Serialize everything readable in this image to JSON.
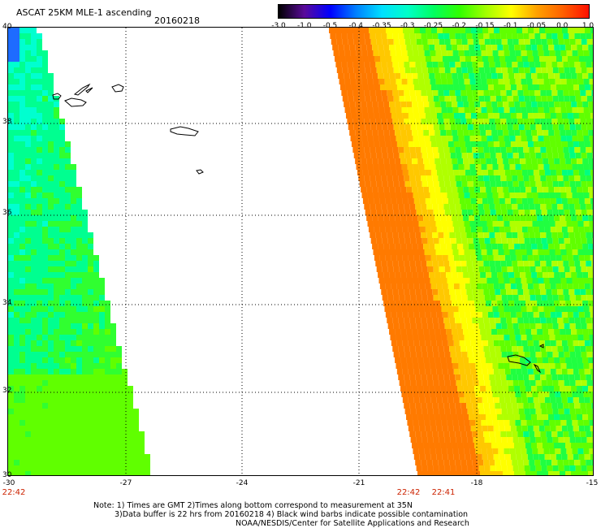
{
  "header": {
    "title": "ASCAT 25KM MLE-1 ascending",
    "date": "20160218"
  },
  "colorbar": {
    "labels": [
      "-3.0",
      "-1.0",
      "-0.5",
      "-0.4",
      "-0.35",
      "-0.3",
      "-0.25",
      "-0.2",
      "-0.15",
      "-0.1",
      "-0.05",
      "0.0",
      "1.0"
    ],
    "colors": [
      "#000000",
      "#5a0a9a",
      "#0000ff",
      "#0080ff",
      "#00e0ff",
      "#00ffc8",
      "#00ff60",
      "#30ff00",
      "#a0ff00",
      "#ffff00",
      "#ffa000",
      "#ff6000",
      "#ff1000"
    ]
  },
  "map": {
    "lat_labels": [
      "40",
      "38",
      "36",
      "34",
      "32",
      "30"
    ],
    "lon_labels": [
      "-30",
      "-27",
      "-24",
      "-21",
      "-18",
      "-15"
    ],
    "time_labels": [
      "22:42",
      "22:42",
      "22:41"
    ],
    "lat_range": [
      30,
      40
    ],
    "lon_range": [
      -30,
      -15
    ],
    "swaths": [
      {
        "name": "west",
        "color_scale": "blue-green"
      },
      {
        "name": "east",
        "color_scale": "orange-green"
      }
    ]
  },
  "notes": {
    "line1": "Note: 1) Times are GMT 2)Times along bottom correspond to measurement at 35N",
    "line2": "3)Data buffer is 22 hrs from 20160218 4) Black wind barbs indicate possible contamination",
    "line3": "NOAA/NESDIS/Center for Satellite Applications and Research"
  }
}
